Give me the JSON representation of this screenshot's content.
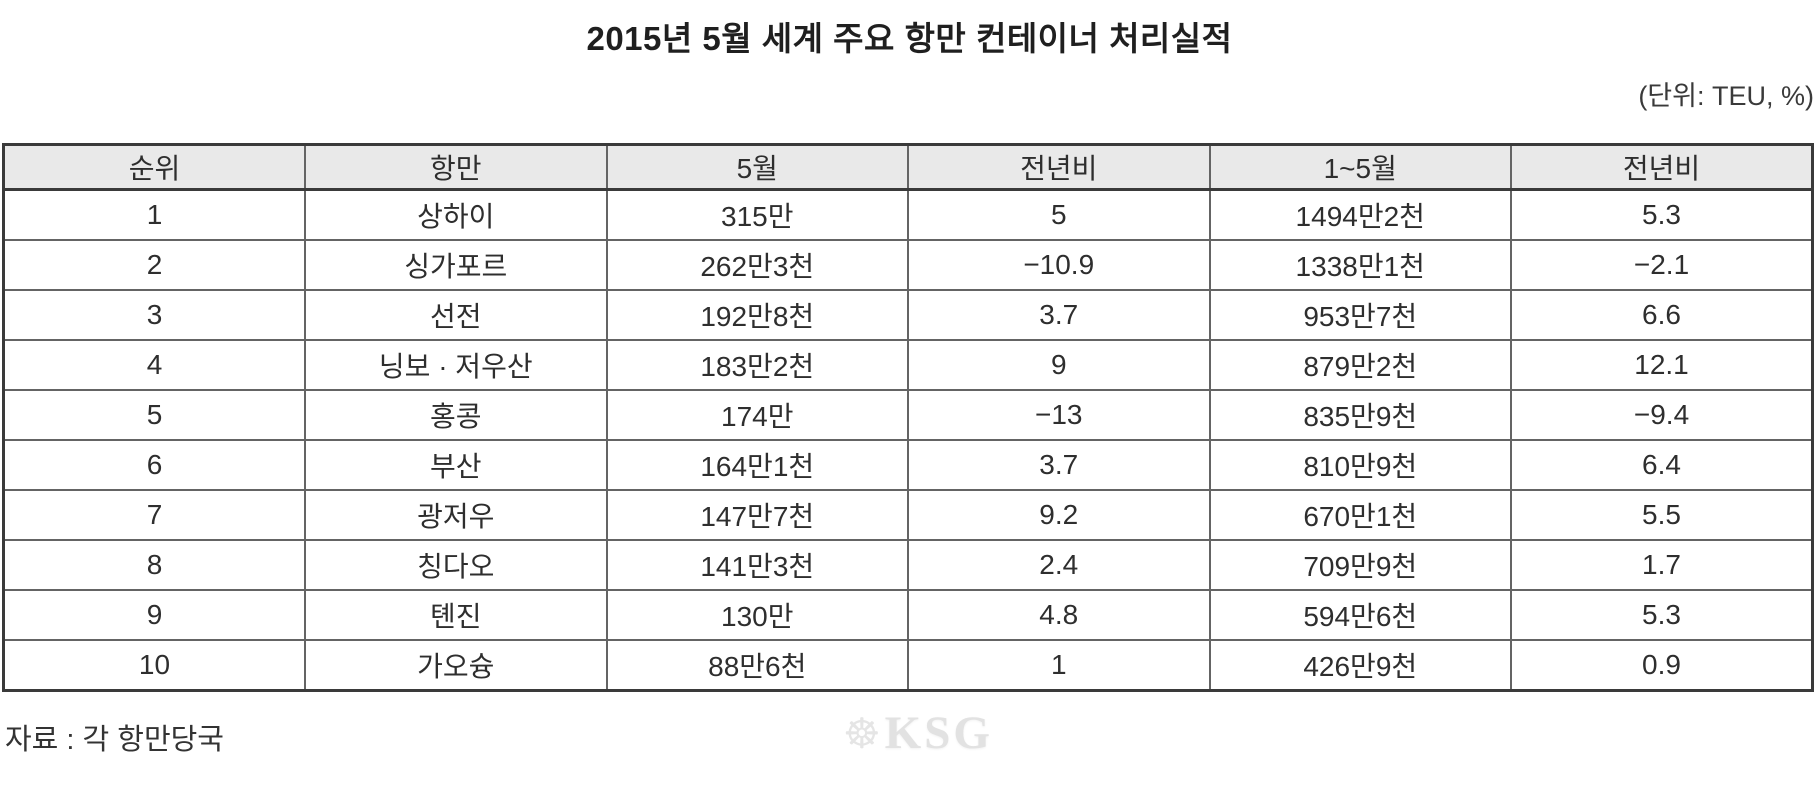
{
  "chart_data": {
    "type": "table",
    "title": "2015년 5월 세계 주요 항만 컨테이너 처리실적",
    "unit_label": "(단위: TEU, %)",
    "source_label": "자료 : 각 항만당국",
    "columns": [
      "순위",
      "항만",
      "5월",
      "전년비",
      "1~5월",
      "전년비"
    ],
    "rows": [
      [
        "1",
        "상하이",
        "315만",
        "5",
        "1494만2천",
        "5.3"
      ],
      [
        "2",
        "싱가포르",
        "262만3천",
        "−10.9",
        "1338만1천",
        "−2.1"
      ],
      [
        "3",
        "선전",
        "192만8천",
        "3.7",
        "953만7천",
        "6.6"
      ],
      [
        "4",
        "닝보 · 저우산",
        "183만2천",
        "9",
        "879만2천",
        "12.1"
      ],
      [
        "5",
        "홍콩",
        "174만",
        "−13",
        "835만9천",
        "−9.4"
      ],
      [
        "6",
        "부산",
        "164만1천",
        "3.7",
        "810만9천",
        "6.4"
      ],
      [
        "7",
        "광저우",
        "147만7천",
        "9.2",
        "670만1천",
        "5.5"
      ],
      [
        "8",
        "칭다오",
        "141만3천",
        "2.4",
        "709만9천",
        "1.7"
      ],
      [
        "9",
        "톈진",
        "130만",
        "4.8",
        "594만6천",
        "5.3"
      ],
      [
        "10",
        "가오슝",
        "88만6천",
        "1",
        "426만9천",
        "0.9"
      ]
    ],
    "layout": {
      "columns_equal_width": true,
      "header_background": "#e9e9e9",
      "grid": true
    }
  },
  "logo": {
    "emblem_icon": "ship-wheel-icon",
    "text": "KSG",
    "color": "#e2e2e2"
  },
  "colors": {
    "header_bg": "#e9e9e9",
    "border_outer": "#3a3a3a",
    "border_inner": "#646464",
    "text": "#2e2e2e"
  }
}
